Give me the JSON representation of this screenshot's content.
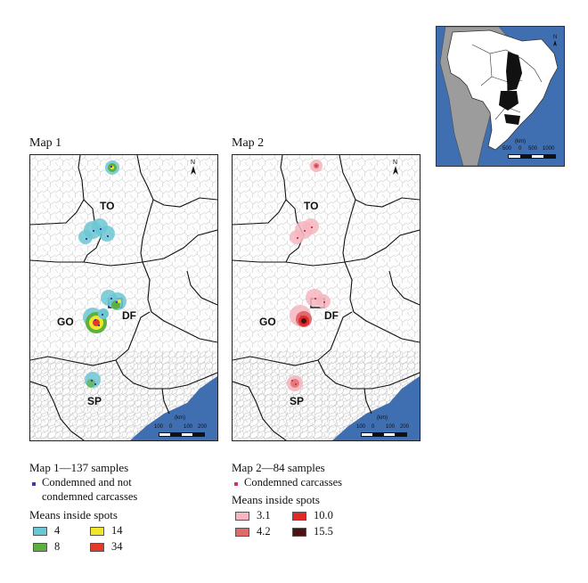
{
  "inset": {
    "scale_unit": "(km)",
    "scale_ticks": [
      "500",
      "0",
      "500",
      "1000"
    ]
  },
  "map1": {
    "title": "Map 1",
    "states": {
      "to": "TO",
      "go": "GO",
      "df": "DF",
      "sp": "SP"
    },
    "north": "N",
    "scale_unit": "(km)",
    "scale_ticks": [
      "100",
      "0",
      "100",
      "200"
    ],
    "legend": {
      "samples": "Map 1—137 samples",
      "point_label_line1": "Condemned and not",
      "point_label_line2": "condemned carcasses",
      "point_color": "#3a3aa8",
      "means_title": "Means inside spots",
      "classes": [
        {
          "value": "4",
          "color": "#6cc7d4"
        },
        {
          "value": "8",
          "color": "#5cb040"
        },
        {
          "value": "14",
          "color": "#f2e62a"
        },
        {
          "value": "34",
          "color": "#e23a2a"
        }
      ]
    }
  },
  "map2": {
    "title": "Map 2",
    "states": {
      "to": "TO",
      "go": "GO",
      "df": "DF",
      "sp": "SP"
    },
    "north": "N",
    "scale_unit": "(km)",
    "scale_ticks": [
      "100",
      "0",
      "100",
      "200"
    ],
    "legend": {
      "samples": "Map 2—84 samples",
      "point_label": "Condemned carcasses",
      "point_color": "#d2345a",
      "means_title": "Means inside spots",
      "classes": [
        {
          "value": "3.1",
          "color": "#f4b6c0"
        },
        {
          "value": "4.2",
          "color": "#e06a6a"
        },
        {
          "value": "10.0",
          "color": "#e02a2a"
        },
        {
          "value": "15.5",
          "color": "#4a1212"
        }
      ]
    }
  }
}
